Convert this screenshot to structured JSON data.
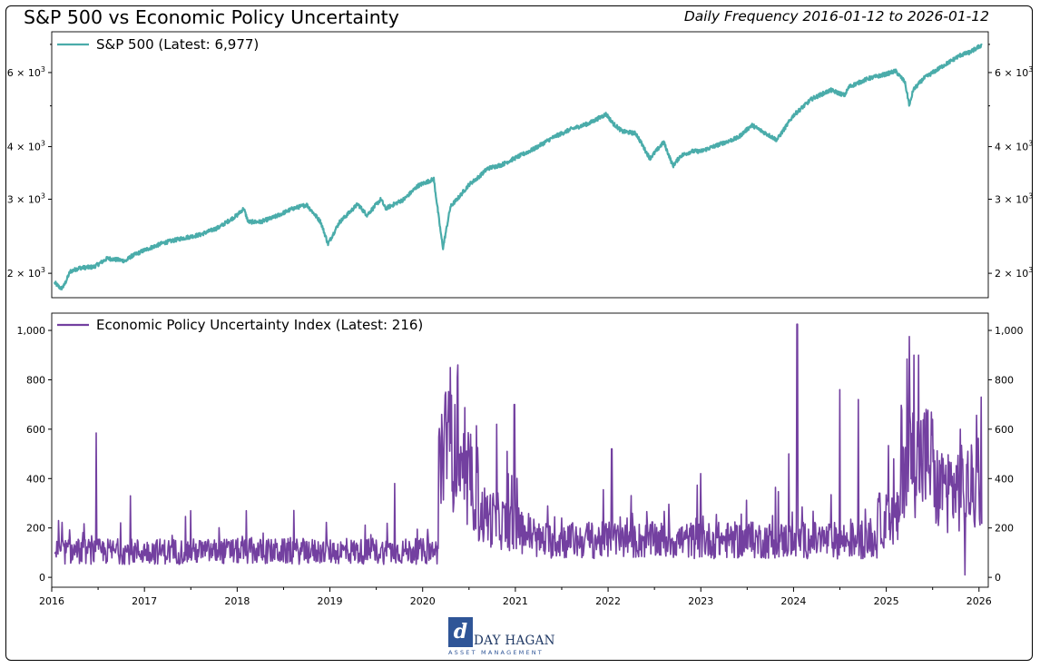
{
  "header": {
    "title": "S&P 500 vs Economic Policy Uncertainty",
    "subtitle": "Daily Frequency 2016-01-12 to 2026-01-12"
  },
  "logo": {
    "mark": "d",
    "name": "DAY HAGAN",
    "tagline": "ASSET MANAGEMENT"
  },
  "colors": {
    "spx": "#4aacaa",
    "epu": "#7340a0"
  },
  "chart_data": [
    {
      "type": "line",
      "scale": "log",
      "legend": "S&P 500 (Latest: 6,977)",
      "legend_position": "top-left",
      "ylim": [
        1750,
        7500
      ],
      "yticks": [
        2000,
        3000,
        4000,
        6000
      ],
      "ytick_labels": [
        {
          "base": "2 × 10",
          "exp": "3"
        },
        {
          "base": "3 × 10",
          "exp": "3"
        },
        {
          "base": "4 × 10",
          "exp": "3"
        },
        {
          "base": "6 × 10",
          "exp": "3"
        }
      ],
      "series": [
        {
          "name": "S&P 500",
          "x": [
            2016.03,
            2016.1,
            2016.13,
            2016.2,
            2016.3,
            2016.45,
            2016.5,
            2016.6,
            2016.8,
            2016.85,
            2017.0,
            2017.2,
            2017.4,
            2017.6,
            2017.8,
            2018.0,
            2018.07,
            2018.12,
            2018.25,
            2018.4,
            2018.6,
            2018.75,
            2018.9,
            2018.98,
            2019.1,
            2019.3,
            2019.4,
            2019.55,
            2019.6,
            2019.8,
            2019.95,
            2020.12,
            2020.2,
            2020.22,
            2020.3,
            2020.4,
            2020.5,
            2020.6,
            2020.7,
            2020.85,
            2021.0,
            2021.2,
            2021.4,
            2021.6,
            2021.8,
            2021.98,
            2022.05,
            2022.15,
            2022.3,
            2022.45,
            2022.6,
            2022.7,
            2022.78,
            2022.9,
            2023.0,
            2023.2,
            2023.4,
            2023.55,
            2023.7,
            2023.82,
            2024.0,
            2024.2,
            2024.4,
            2024.55,
            2024.6,
            2024.8,
            2025.0,
            2025.1,
            2025.2,
            2025.25,
            2025.29,
            2025.4,
            2025.6,
            2025.8,
            2025.9,
            2026.03
          ],
          "values": [
            1900,
            1840,
            1865,
            2020,
            2060,
            2070,
            2100,
            2170,
            2140,
            2190,
            2270,
            2360,
            2420,
            2470,
            2570,
            2750,
            2850,
            2650,
            2650,
            2720,
            2850,
            2910,
            2650,
            2350,
            2640,
            2920,
            2750,
            3000,
            2850,
            3000,
            3230,
            3350,
            2450,
            2300,
            2880,
            3050,
            3250,
            3380,
            3550,
            3620,
            3760,
            3950,
            4200,
            4400,
            4550,
            4780,
            4550,
            4350,
            4300,
            3750,
            4100,
            3600,
            3800,
            3900,
            3900,
            4050,
            4200,
            4500,
            4300,
            4150,
            4750,
            5200,
            5450,
            5300,
            5550,
            5800,
            5950,
            6050,
            5700,
            5000,
            5450,
            5800,
            6200,
            6600,
            6700,
            6977
          ]
        }
      ]
    },
    {
      "type": "line",
      "legend": "Economic Policy Uncertainty Index (Latest: 216)",
      "legend_position": "top-left",
      "ylim": [
        -40,
        1070
      ],
      "yticks": [
        0,
        200,
        400,
        600,
        800,
        1000
      ],
      "ytick_labels": [
        "0",
        "200",
        "400",
        "600",
        "800",
        "1,000"
      ],
      "xlim": [
        2016.0,
        2026.1
      ],
      "xticks": [
        "2016",
        "2017",
        "2018",
        "2019",
        "2020",
        "2021",
        "2022",
        "2023",
        "2024",
        "2025",
        "2026"
      ],
      "series": [
        {
          "name": "Economic Policy Uncertainty Index",
          "x": [
            2016.03,
            2016.47,
            2016.48,
            2016.85,
            2017.5,
            2018.1,
            2019.7,
            2020.2,
            2020.25,
            2020.3,
            2020.35,
            2020.38,
            2020.5,
            2020.8,
            2020.99,
            2021.5,
            2022.04,
            2023.0,
            2023.95,
            2024.04,
            2024.5,
            2024.7,
            2025.08,
            2025.25,
            2025.3,
            2025.35,
            2025.5,
            2025.8,
            2025.85,
            2026.03
          ],
          "values": [
            100,
            105,
            585,
            330,
            270,
            270,
            380,
            300,
            750,
            850,
            700,
            860,
            520,
            620,
            700,
            240,
            520,
            420,
            500,
            1025,
            760,
            720,
            480,
            975,
            900,
            900,
            640,
            600,
            10,
            216
          ],
          "baseline": 105,
          "noise_range": 75
        }
      ]
    }
  ]
}
